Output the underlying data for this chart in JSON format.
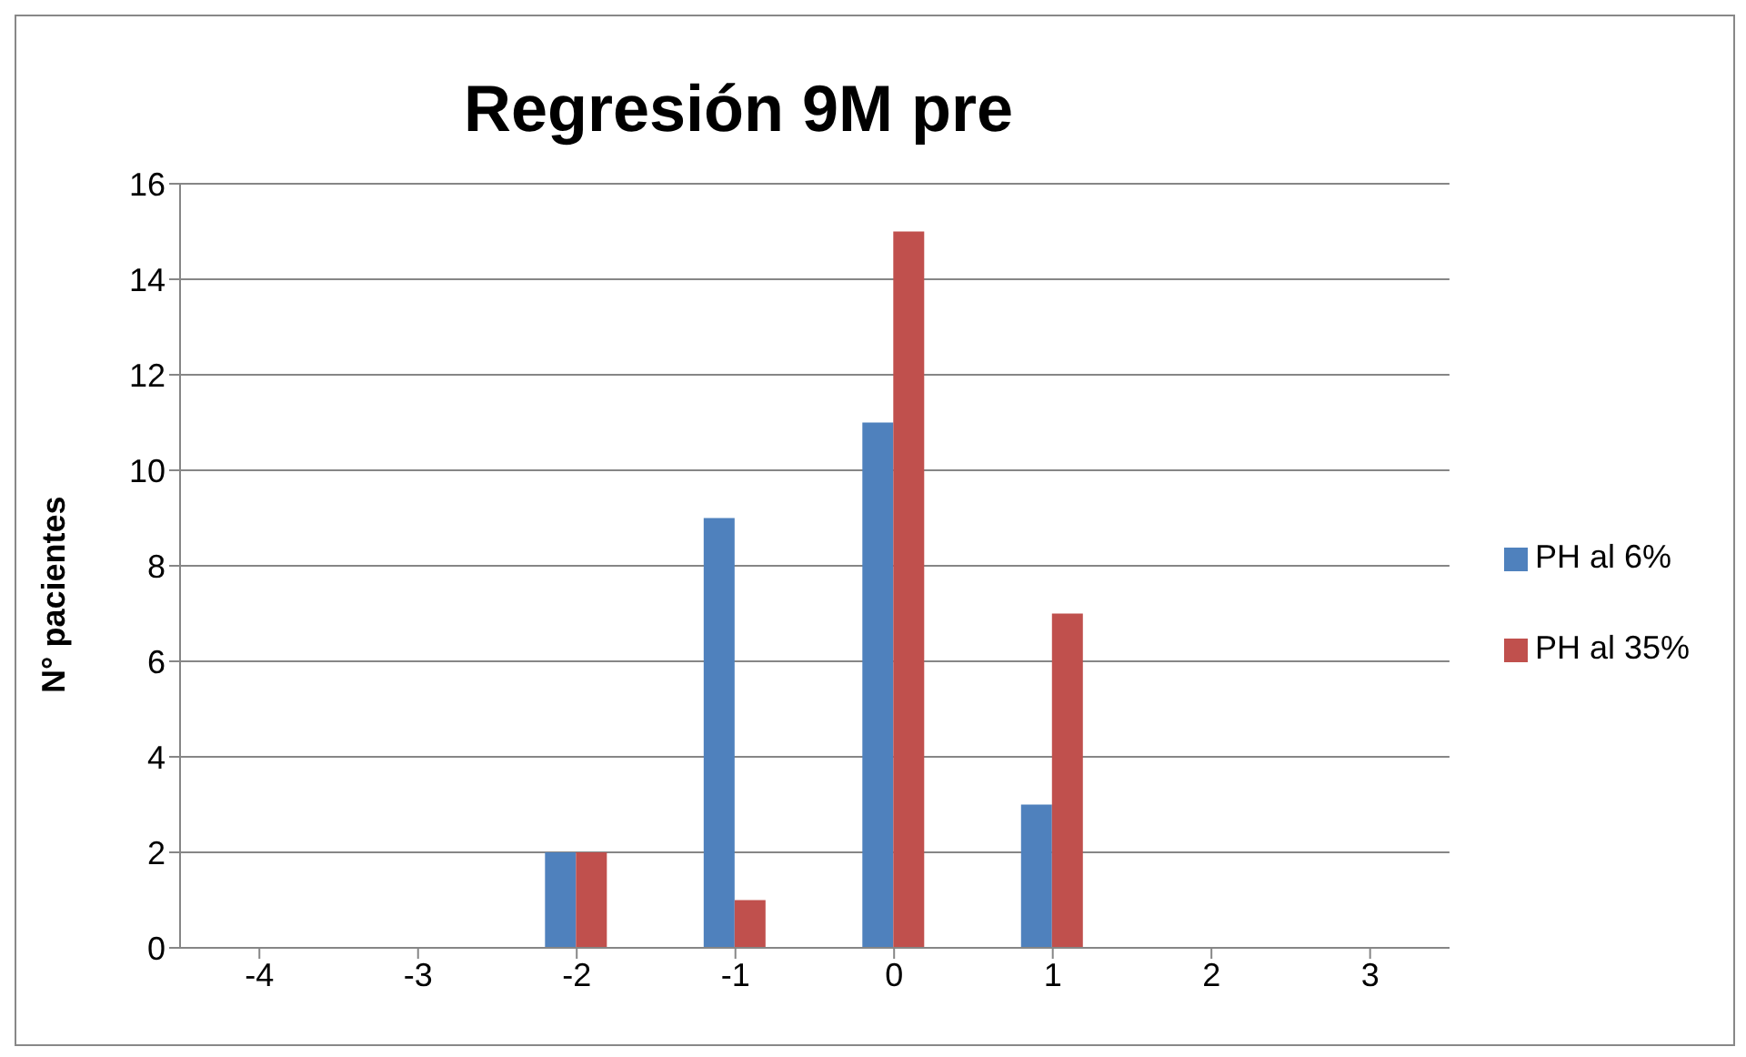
{
  "chart_data": {
    "type": "bar",
    "title": "Regresión 9M pre",
    "ylabel": "N° pacientes",
    "categories": [
      "-4",
      "-3",
      "-2",
      "-1",
      "0",
      "1",
      "2",
      "3"
    ],
    "series": [
      {
        "name": "PH al 6%",
        "color": "#4f81bd",
        "values": [
          0,
          0,
          2,
          9,
          11,
          3,
          0,
          0
        ]
      },
      {
        "name": "PH al 35%",
        "color": "#c0504d",
        "values": [
          0,
          0,
          2,
          1,
          15,
          7,
          0,
          0
        ]
      }
    ],
    "ylim": [
      0,
      16
    ],
    "yticks": [
      0,
      2,
      4,
      6,
      8,
      10,
      12,
      14,
      16
    ],
    "grid": "y",
    "legend": "right"
  }
}
